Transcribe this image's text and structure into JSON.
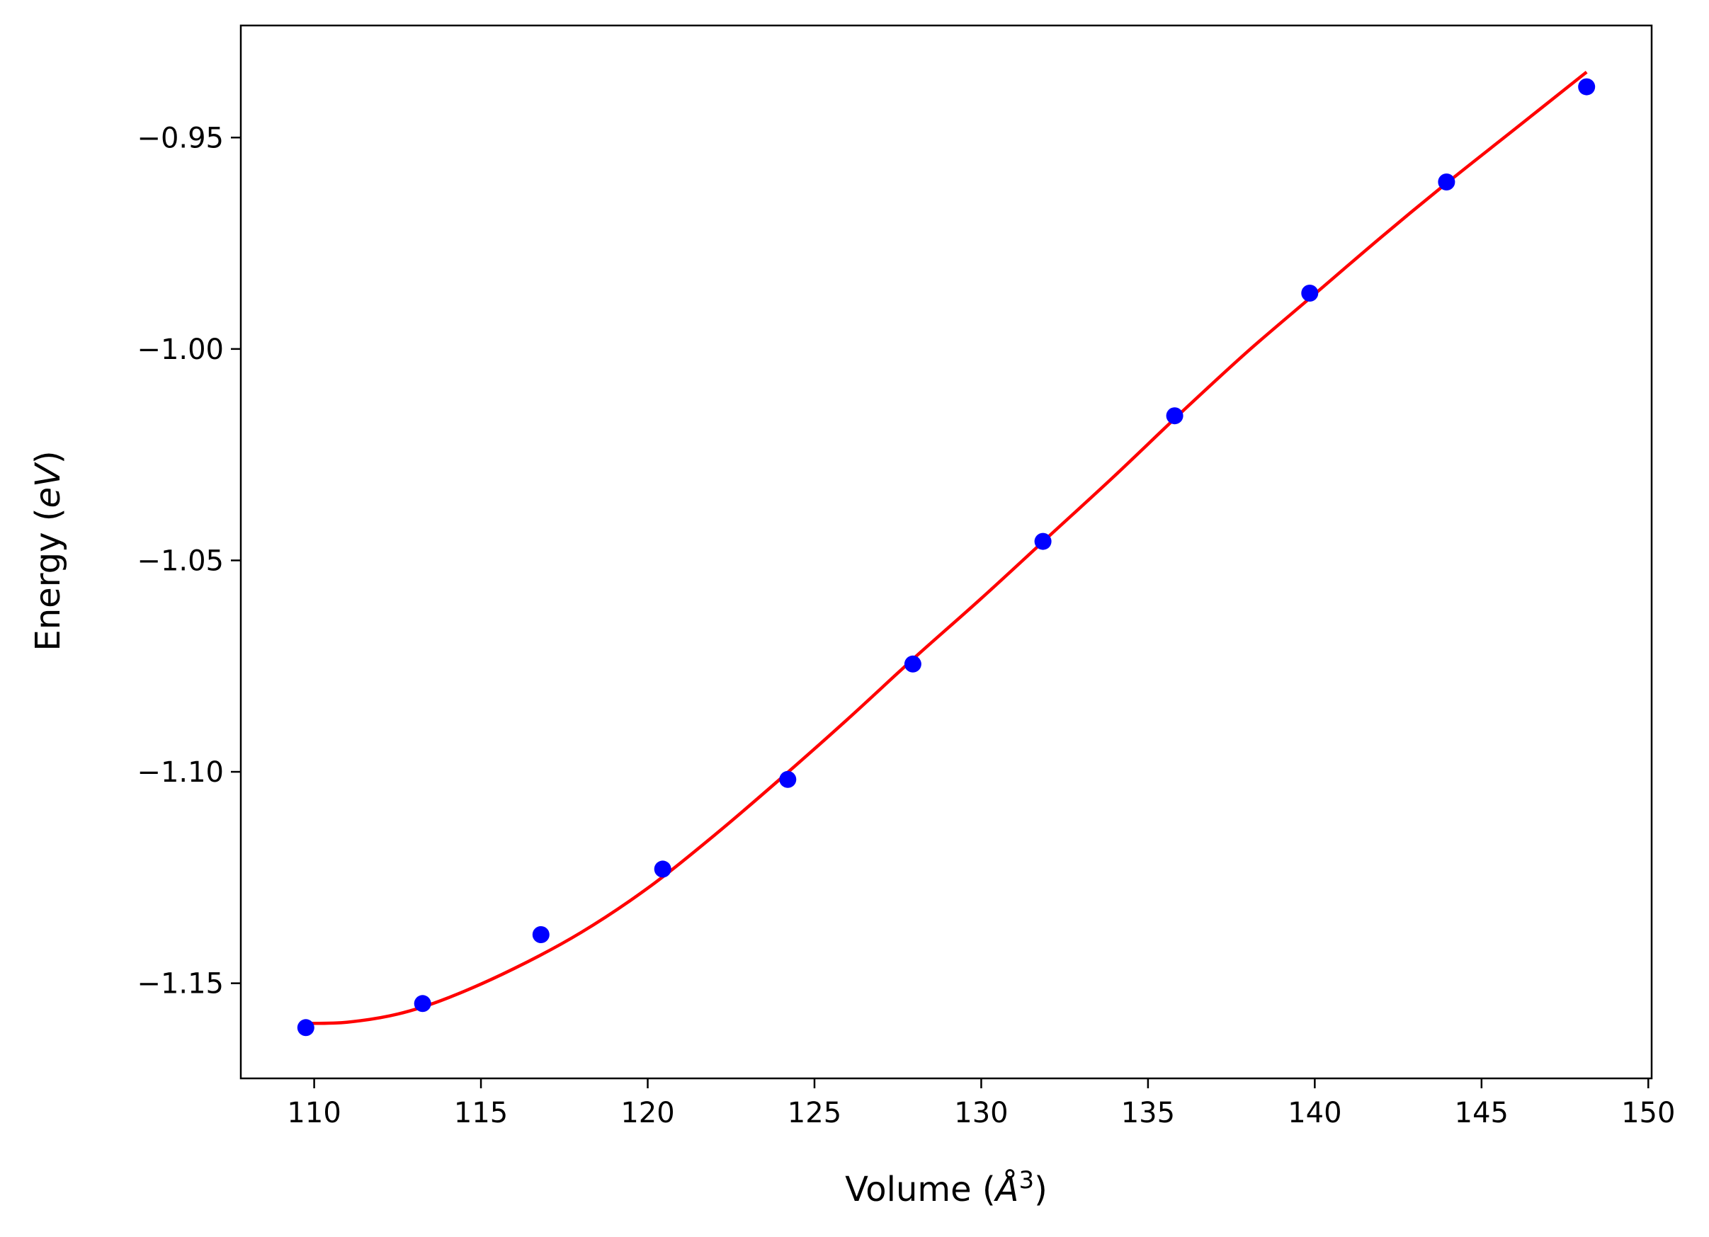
{
  "chart_data": {
    "type": "scatter",
    "xlabel": {
      "prefix": "Volume (",
      "unit": "Å",
      "exponent": "3",
      "suffix": ")"
    },
    "ylabel": {
      "prefix": "Energy (",
      "unit": "eV",
      "suffix": ")"
    },
    "xlim": [
      107.8,
      150.1
    ],
    "ylim": [
      -1.1725,
      -0.9235
    ],
    "xticks": [
      {
        "value": 110,
        "label": "110"
      },
      {
        "value": 115,
        "label": "115"
      },
      {
        "value": 120,
        "label": "120"
      },
      {
        "value": 125,
        "label": "125"
      },
      {
        "value": 130,
        "label": "130"
      },
      {
        "value": 135,
        "label": "135"
      },
      {
        "value": 140,
        "label": "140"
      },
      {
        "value": 145,
        "label": "145"
      },
      {
        "value": 150,
        "label": "150"
      }
    ],
    "yticks": [
      {
        "value": -0.95,
        "label": "−0.95"
      },
      {
        "value": -1.0,
        "label": "−1.00"
      },
      {
        "value": -1.05,
        "label": "−1.05"
      },
      {
        "value": -1.1,
        "label": "−1.10"
      },
      {
        "value": -1.15,
        "label": "−1.15"
      }
    ],
    "grid": false,
    "series": [
      {
        "kind": "points",
        "color": "#0000ff",
        "x": [
          109.75,
          113.25,
          116.8,
          120.45,
          124.2,
          127.95,
          131.85,
          135.8,
          139.85,
          143.95,
          148.15
        ],
        "y": [
          -1.1605,
          -1.1548,
          -1.1385,
          -1.123,
          -1.1018,
          -1.0745,
          -1.0455,
          -1.0158,
          -0.9868,
          -0.9605,
          -0.938
        ]
      },
      {
        "kind": "fit-line",
        "color": "#ff0000",
        "x": [
          109.75,
          111.0,
          112.5,
          114.0,
          116.0,
          118.0,
          120.0,
          122.0,
          124.0,
          126.0,
          128.0,
          130.0,
          132.0,
          134.0,
          136.0,
          138.0,
          140.0,
          142.0,
          144.0,
          146.0,
          148.15
        ],
        "y": [
          -1.1595,
          -1.1592,
          -1.1573,
          -1.1535,
          -1.1465,
          -1.138,
          -1.1275,
          -1.115,
          -1.1015,
          -1.0875,
          -1.073,
          -1.059,
          -1.0445,
          -1.03,
          -1.015,
          -1.0005,
          -0.987,
          -0.9735,
          -0.9605,
          -0.948,
          -0.9345
        ]
      }
    ]
  }
}
